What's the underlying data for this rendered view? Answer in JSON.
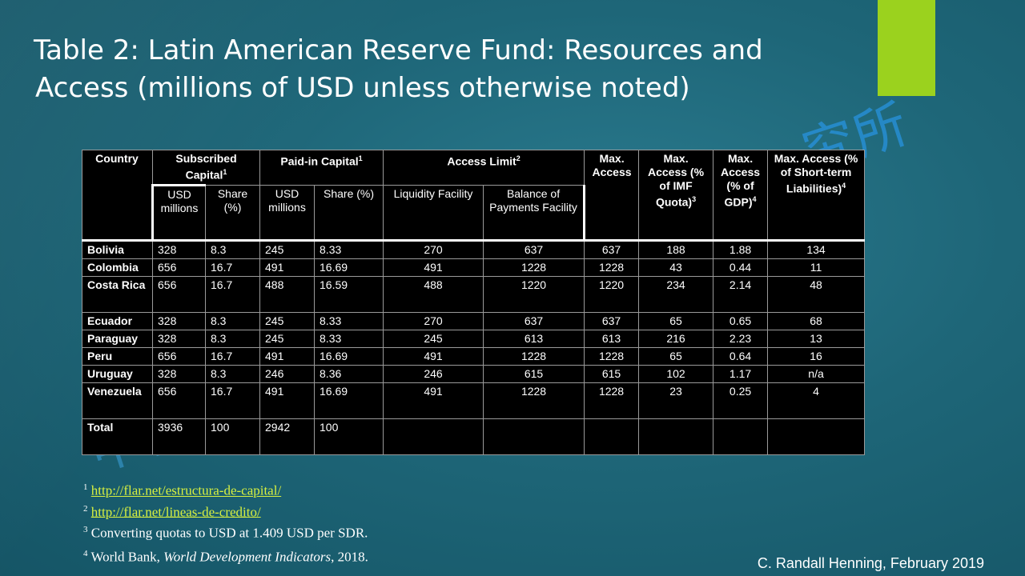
{
  "slide": {
    "title_line1": "Table 2: Latin American Reserve Fund: Resources and",
    "title_line2": "Access (millions of USD unless otherwise noted)",
    "watermark_left": "中国",
    "watermark_right": "究所",
    "accent_color": "#9bd21e",
    "footer": "C. Randall Henning, February 2019"
  },
  "table": {
    "headers": {
      "country": "Country",
      "subscribed": "Subscribed Capital",
      "subscribed_sup": "1",
      "paidin": "Paid-in Capital",
      "paidin_sup": "1",
      "access": "Access Limit",
      "access_sup": "2",
      "max_access": "Max. Access",
      "max_imf": "Max. Access (% of IMF Quota)",
      "max_imf_sup": "3",
      "max_gdp": "Max. Access (% of GDP)",
      "max_gdp_sup": "4",
      "max_stl": "Max. Access (% of Short-term Liabilities)",
      "max_stl_sup": "4",
      "usd_millions": "USD millions",
      "share_pct": "Share (%)",
      "usd_millions_2": "USD millions",
      "share_pct_2": "Share (%)",
      "liquidity": "Liquidity Facility",
      "bop": "Balance of Payments Facility"
    },
    "rows": [
      {
        "country": "Bolivia",
        "sub_usd": "328",
        "sub_share": "8.3",
        "paid_usd": "245",
        "paid_share": "8.33",
        "liq": "270",
        "bop": "637",
        "max": "637",
        "imf": "188",
        "gdp": "1.88",
        "stl": "134"
      },
      {
        "country": "Colombia",
        "sub_usd": "656",
        "sub_share": "16.7",
        "paid_usd": "491",
        "paid_share": "16.69",
        "liq": "491",
        "bop": "1228",
        "max": "1228",
        "imf": "43",
        "gdp": "0.44",
        "stl": "11"
      },
      {
        "country": "Costa Rica",
        "sub_usd": "656",
        "sub_share": "16.7",
        "paid_usd": "488",
        "paid_share": "16.59",
        "liq": "488",
        "bop": "1220",
        "max": "1220",
        "imf": "234",
        "gdp": "2.14",
        "stl": "48"
      },
      {
        "country": "Ecuador",
        "sub_usd": "328",
        "sub_share": "8.3",
        "paid_usd": "245",
        "paid_share": "8.33",
        "liq": "270",
        "bop": "637",
        "max": "637",
        "imf": "65",
        "gdp": "0.65",
        "stl": "68"
      },
      {
        "country": "Paraguay",
        "sub_usd": "328",
        "sub_share": "8.3",
        "paid_usd": "245",
        "paid_share": "8.33",
        "liq": "245",
        "bop": "613",
        "max": "613",
        "imf": "216",
        "gdp": "2.23",
        "stl": "13"
      },
      {
        "country": "Peru",
        "sub_usd": "656",
        "sub_share": "16.7",
        "paid_usd": "491",
        "paid_share": "16.69",
        "liq": "491",
        "bop": "1228",
        "max": "1228",
        "imf": "65",
        "gdp": "0.64",
        "stl": "16"
      },
      {
        "country": "Uruguay",
        "sub_usd": "328",
        "sub_share": "8.3",
        "paid_usd": "246",
        "paid_share": "8.36",
        "liq": "246",
        "bop": "615",
        "max": "615",
        "imf": "102",
        "gdp": "1.17",
        "stl": "n/a"
      },
      {
        "country": "Venezuela",
        "sub_usd": "656",
        "sub_share": "16.7",
        "paid_usd": "491",
        "paid_share": "16.69",
        "liq": "491",
        "bop": "1228",
        "max": "1228",
        "imf": "23",
        "gdp": "0.25",
        "stl": "4"
      },
      {
        "country": "Total",
        "sub_usd": "3936",
        "sub_share": "100",
        "paid_usd": "2942",
        "paid_share": "100",
        "liq": "",
        "bop": "",
        "max": "",
        "imf": "",
        "gdp": "",
        "stl": ""
      }
    ]
  },
  "notes": {
    "n1_sup": "1",
    "n1_link": "http://flar.net/estructura-de-capital/",
    "n2_sup": "2",
    "n2_link": "http://flar.net/lineas-de-credito/",
    "n3_sup": "3",
    "n3_text": "Converting quotas to USD at 1.409 USD per SDR.",
    "n4_sup": "4",
    "n4_prefix": "World Bank, ",
    "n4_italic": "World Development Indicators",
    "n4_suffix": ", 2018."
  }
}
